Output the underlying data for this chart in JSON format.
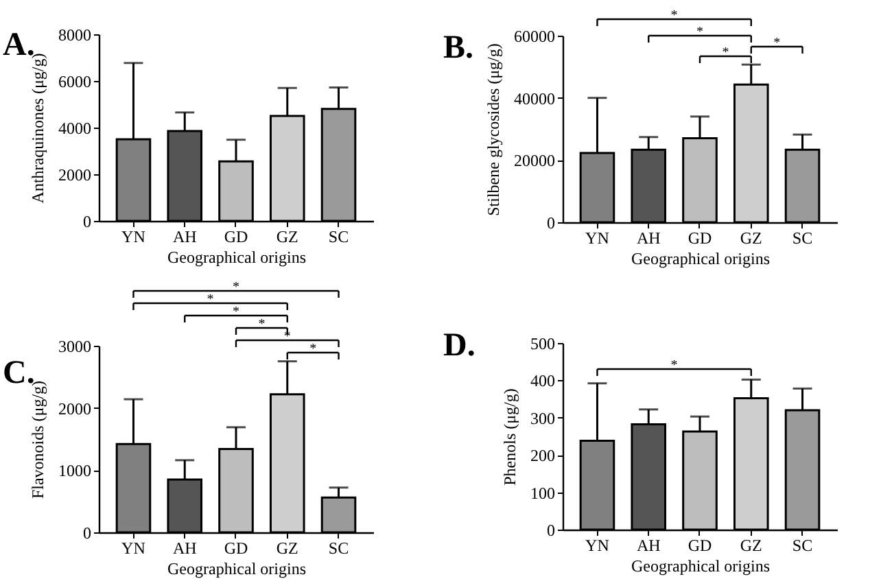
{
  "chart_data": [
    {
      "type": "bar",
      "title": "A.",
      "xlabel": "Geographical origins",
      "ylabel": "Anthraquinones (μg/g)",
      "categories": [
        "YN",
        "AH",
        "GD",
        "GZ",
        "SC"
      ],
      "values": [
        3500,
        3850,
        2550,
        4500,
        4800
      ],
      "errors": [
        [
          3500,
          6770
        ],
        [
          3850,
          4650
        ],
        [
          2550,
          3480
        ],
        [
          4500,
          5700
        ],
        [
          4800,
          5720
        ]
      ],
      "colors": [
        "#808080",
        "#555555",
        "#bdbdbd",
        "#cfcfcf",
        "#9a9a9a"
      ],
      "ylim": [
        0,
        8000
      ],
      "yticks": [
        0,
        2000,
        4000,
        6000,
        8000
      ],
      "grid": false,
      "legend": false
    },
    {
      "type": "bar",
      "title": "B.",
      "xlabel": "Geographical origins",
      "ylabel": "Stilbene glycosides (μg/g)",
      "categories": [
        "YN",
        "AH",
        "GD",
        "GZ",
        "SC"
      ],
      "values": [
        22300,
        23300,
        27000,
        44300,
        23300
      ],
      "errors": [
        [
          22300,
          40000
        ],
        [
          23300,
          27400
        ],
        [
          27000,
          34000
        ],
        [
          44300,
          50700
        ],
        [
          23300,
          28200
        ]
      ],
      "colors": [
        "#808080",
        "#555555",
        "#bdbdbd",
        "#cfcfcf",
        "#9a9a9a"
      ],
      "ylim": [
        0,
        60000
      ],
      "yticks": [
        0,
        20000,
        40000,
        60000
      ],
      "grid": false,
      "legend": false,
      "annotations": [
        "*",
        "*",
        "*",
        "*"
      ]
    },
    {
      "type": "bar",
      "title": "C.",
      "xlabel": "Geographical origins",
      "ylabel": "Flavonoids (μg/g)",
      "categories": [
        "YN",
        "AH",
        "GD",
        "GZ",
        "SC"
      ],
      "values": [
        1420,
        850,
        1340,
        2220,
        560
      ],
      "errors": [
        [
          1420,
          2140
        ],
        [
          850,
          1160
        ],
        [
          1340,
          1690
        ],
        [
          2220,
          2750
        ],
        [
          560,
          720
        ]
      ],
      "colors": [
        "#808080",
        "#555555",
        "#bdbdbd",
        "#cfcfcf",
        "#9a9a9a"
      ],
      "ylim": [
        0,
        3000
      ],
      "yticks": [
        0,
        1000,
        2000,
        3000
      ],
      "grid": false,
      "legend": false,
      "annotations": [
        "*",
        "*",
        "*",
        "*",
        "*",
        "*"
      ]
    },
    {
      "type": "bar",
      "title": "D.",
      "xlabel": "Geographical origins",
      "ylabel": "Phenols (μg/g)",
      "categories": [
        "YN",
        "AH",
        "GD",
        "GZ",
        "SC"
      ],
      "values": [
        238,
        282,
        263,
        352,
        320
      ],
      "errors": [
        [
          238,
          392
        ],
        [
          282,
          322
        ],
        [
          263,
          303
        ],
        [
          352,
          402
        ],
        [
          320,
          378
        ]
      ],
      "colors": [
        "#808080",
        "#555555",
        "#bdbdbd",
        "#cfcfcf",
        "#9a9a9a"
      ],
      "ylim": [
        0,
        500
      ],
      "yticks": [
        0,
        100,
        200,
        300,
        400,
        500
      ],
      "grid": false,
      "legend": false,
      "annotations": [
        "*"
      ]
    }
  ]
}
